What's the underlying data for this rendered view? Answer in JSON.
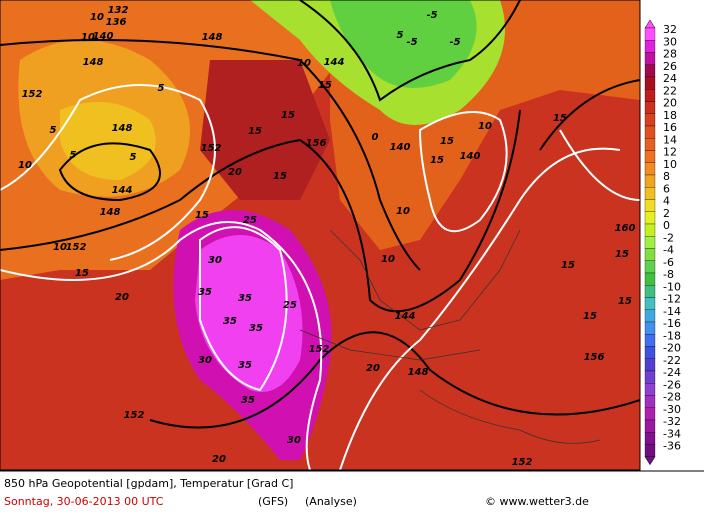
{
  "colorbar": {
    "labels": [
      "32",
      "30",
      "28",
      "26",
      "24",
      "22",
      "20",
      "18",
      "16",
      "14",
      "12",
      "10",
      "8",
      "6",
      "4",
      "2",
      "0",
      "-2",
      "-4",
      "-6",
      "-8",
      "-10",
      "-12",
      "-14",
      "-16",
      "-18",
      "-20",
      "-22",
      "-24",
      "-26",
      "-28",
      "-30",
      "-32",
      "-34",
      "-36"
    ]
  },
  "footer": {
    "title": "850 hPa Geopotential [gpdam], Temperatur [Grad C]",
    "date": "Sonntag, 30-06-2013  00 UTC",
    "model": "(GFS)",
    "run": "(Analyse)",
    "credit": "© www.wetter3.de"
  },
  "map_labels": [
    "10",
    "132",
    "136",
    "10",
    "140",
    "148",
    "148",
    "152",
    "5",
    "5",
    "148",
    "10",
    "5",
    "5",
    "144",
    "148",
    "10",
    "152",
    "15",
    "20",
    "15",
    "20",
    "152",
    "15",
    "15",
    "156",
    "15",
    "140",
    "15",
    "15",
    "140",
    "10",
    "15",
    "10",
    "160",
    "15",
    "15",
    "15",
    "15",
    "10",
    "144",
    "156",
    "20",
    "148",
    "152",
    "20",
    "152",
    "25",
    "30",
    "35",
    "35",
    "35",
    "35",
    "30",
    "35",
    "35",
    "30",
    "152",
    "25",
    "144",
    "0",
    "-5",
    "-5",
    "-5",
    "5",
    "10",
    "15"
  ]
}
